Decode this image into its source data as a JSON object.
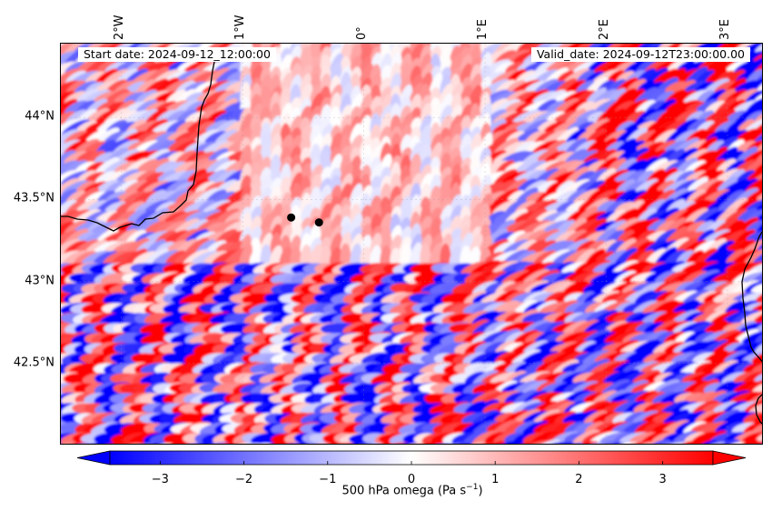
{
  "header": {
    "start_label": "Start date: 2024-09-12_12:00:00",
    "valid_label": "Valid_date: 2024-09-12T23:00:00.00"
  },
  "map": {
    "variable": "500 hPa omega",
    "units": "Pa s⁻¹",
    "lon_range": [
      -2.5,
      3.3
    ],
    "lat_range": [
      42.0,
      44.45
    ],
    "lon_ticks": [
      {
        "value": -2,
        "label": "2°W"
      },
      {
        "value": -1,
        "label": "1°W"
      },
      {
        "value": 0,
        "label": "0°"
      },
      {
        "value": 1,
        "label": "1°E"
      },
      {
        "value": 2,
        "label": "2°E"
      },
      {
        "value": 3,
        "label": "3°E"
      }
    ],
    "lat_ticks": [
      {
        "value": 44.0,
        "label": "44°N"
      },
      {
        "value": 43.5,
        "label": "43.5°N"
      },
      {
        "value": 43.0,
        "label": "43°N"
      },
      {
        "value": 42.5,
        "label": "42.5°N"
      }
    ],
    "point_markers": [
      {
        "lon": -0.6,
        "lat": 43.39
      },
      {
        "lon": -0.37,
        "lat": 43.36
      }
    ],
    "colors": {
      "negative": "#0000ff",
      "zero": "#ffffff",
      "positive": "#ff0000",
      "coastline": "#000000"
    }
  },
  "colorbar": {
    "label_prefix": "500 hPa omega (Pa s",
    "label_exp": "−1",
    "label_suffix": ")",
    "min": -3.6,
    "max": 3.6,
    "extend": "both",
    "ticks": [
      {
        "value": -3,
        "label": "−3"
      },
      {
        "value": -2,
        "label": "−2"
      },
      {
        "value": -1,
        "label": "−1"
      },
      {
        "value": 0,
        "label": "0"
      },
      {
        "value": 1,
        "label": "1"
      },
      {
        "value": 2,
        "label": "2"
      },
      {
        "value": 3,
        "label": "3"
      }
    ]
  }
}
